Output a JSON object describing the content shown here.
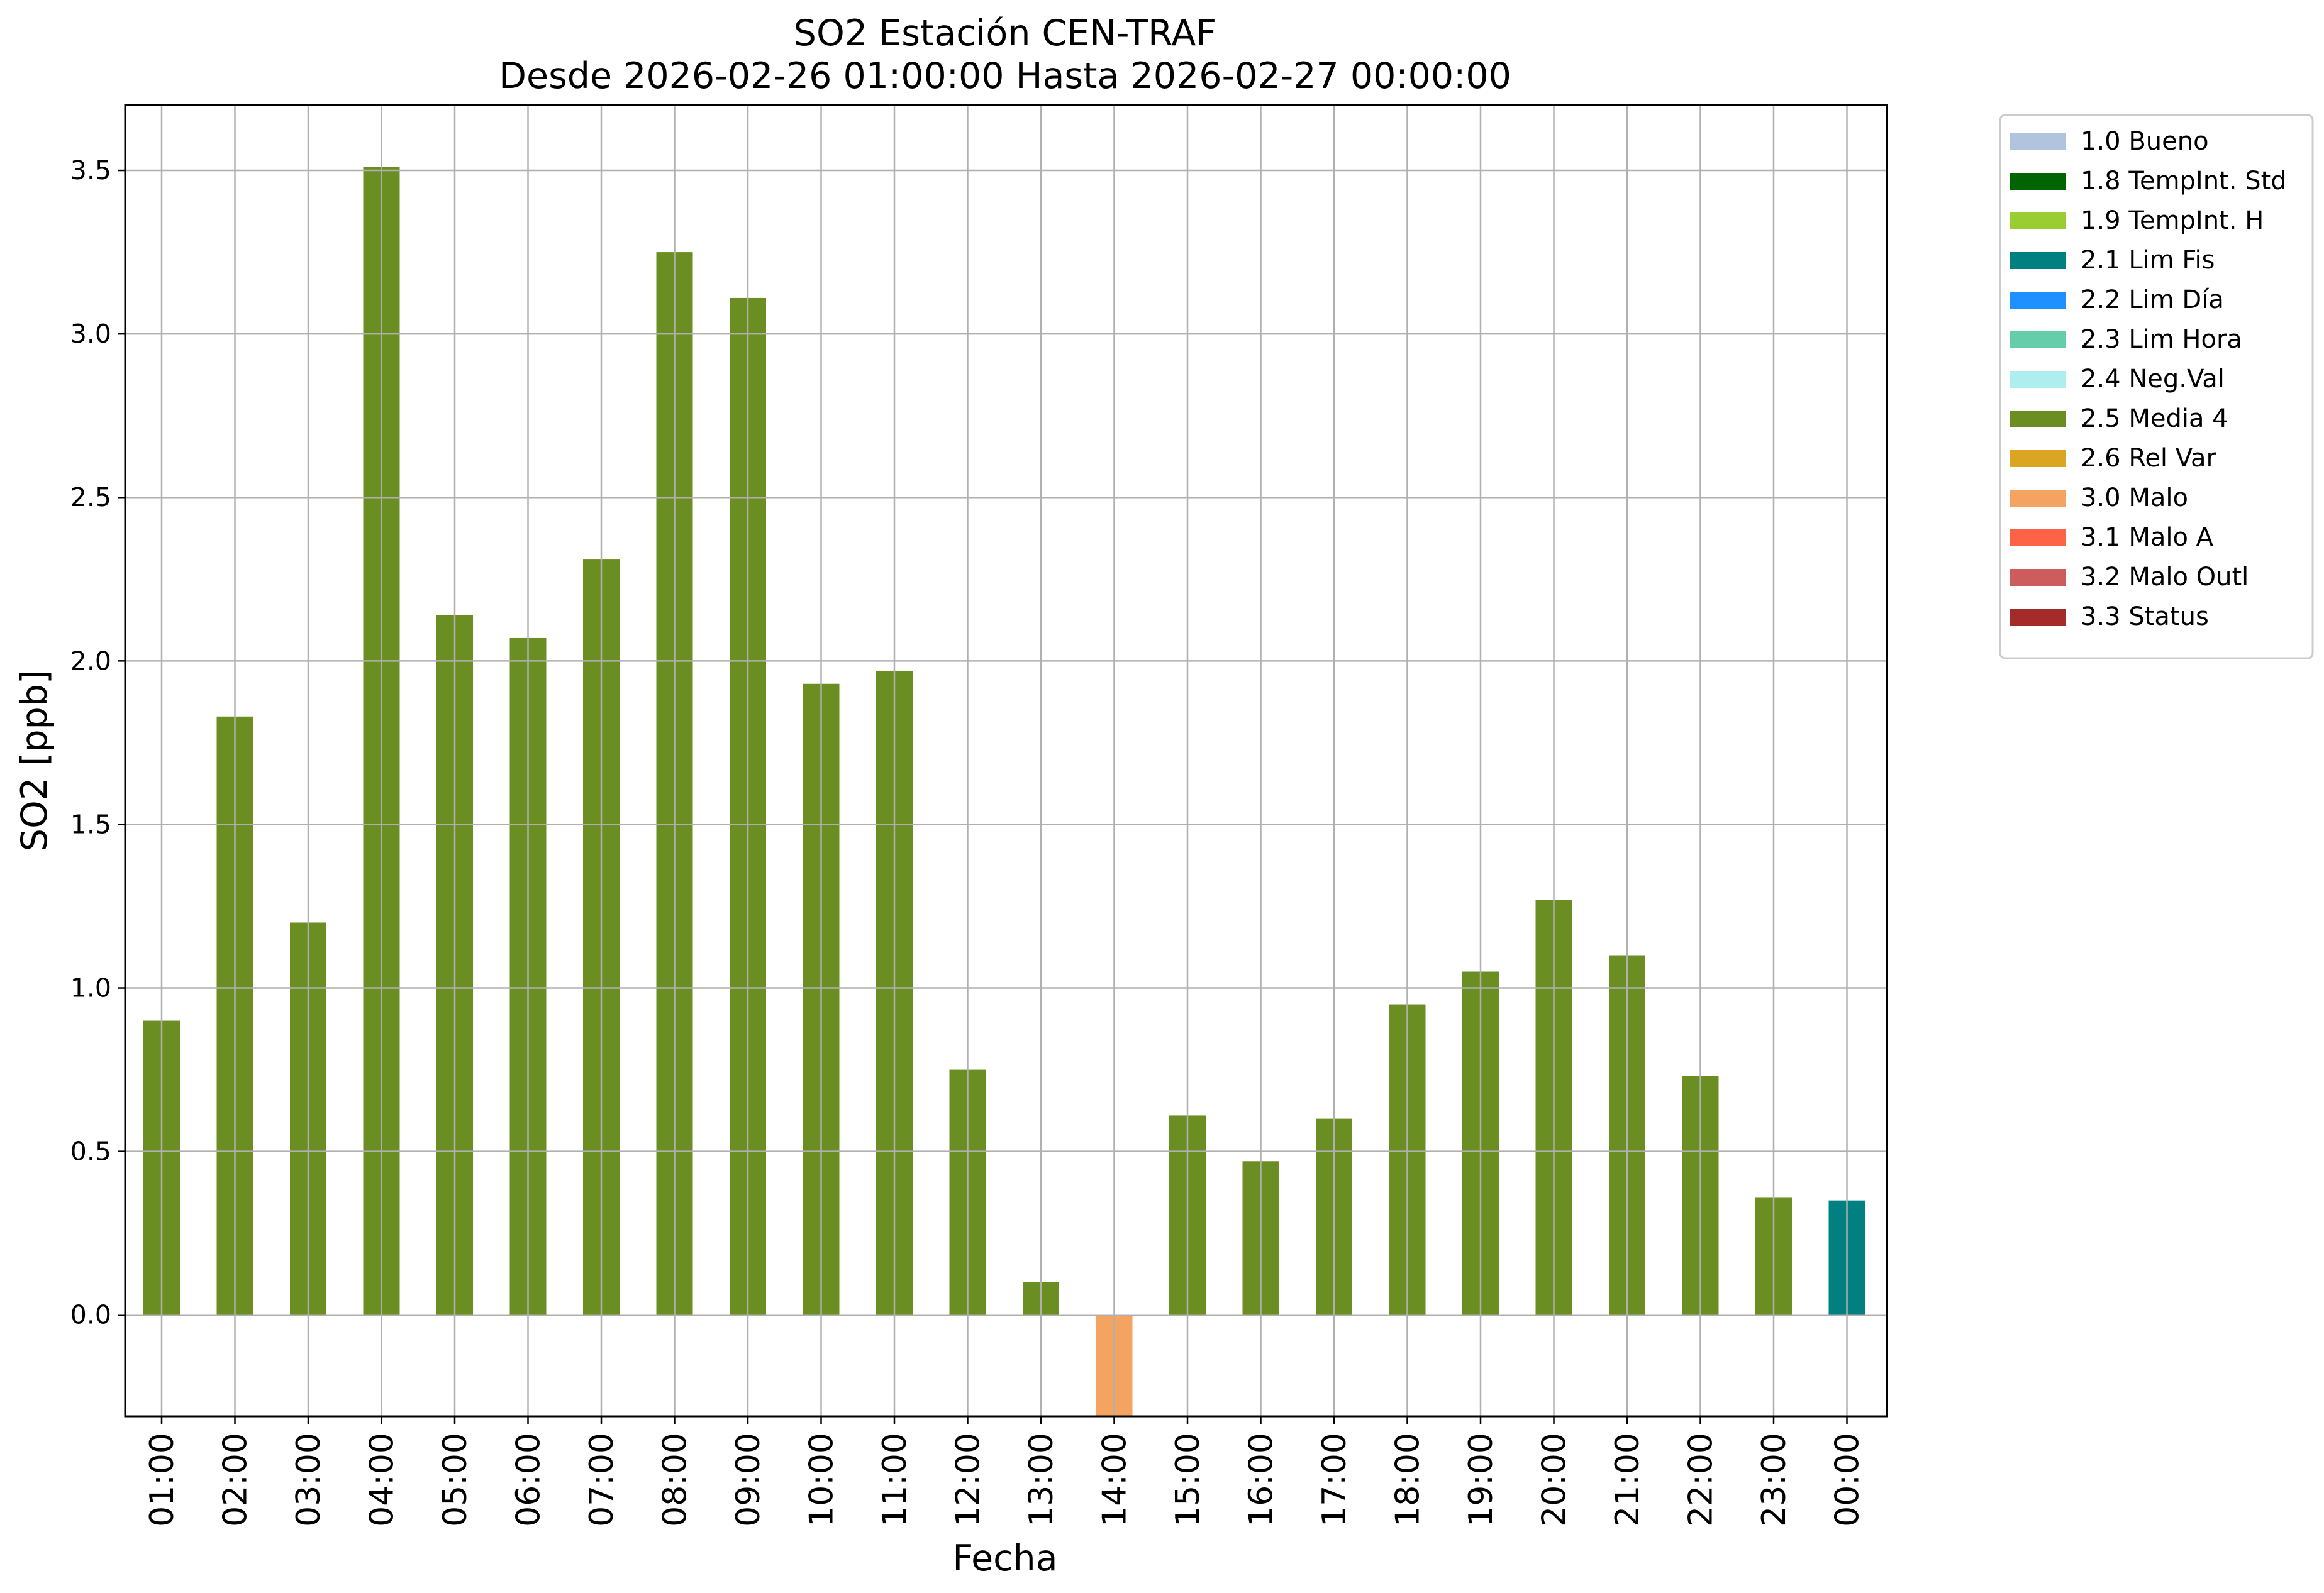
{
  "chart_data": {
    "type": "bar",
    "title": "SO2 Estación CEN-TRAF",
    "subtitle": "Desde 2026-02-26 01:00:00 Hasta 2026-02-27 00:00:00",
    "xlabel": "Fecha",
    "ylabel": "SO2 [ppb]",
    "ylim": [
      -0.31,
      3.7
    ],
    "yticks": [
      "0.0",
      "0.5",
      "1.0",
      "1.5",
      "2.0",
      "2.5",
      "3.0",
      "3.5"
    ],
    "grid": true,
    "legend_position": "outside top-right",
    "categories": [
      "01:00",
      "02:00",
      "03:00",
      "04:00",
      "05:00",
      "06:00",
      "07:00",
      "08:00",
      "09:00",
      "10:00",
      "11:00",
      "12:00",
      "13:00",
      "14:00",
      "15:00",
      "16:00",
      "17:00",
      "18:00",
      "19:00",
      "20:00",
      "21:00",
      "22:00",
      "23:00",
      "00:00"
    ],
    "values": [
      0.9,
      1.83,
      1.2,
      3.51,
      2.14,
      2.07,
      2.31,
      3.25,
      3.11,
      1.93,
      1.97,
      0.75,
      0.1,
      -0.32,
      0.61,
      0.47,
      0.6,
      0.95,
      1.05,
      1.27,
      1.1,
      0.73,
      0.36,
      0.35
    ],
    "flags": [
      "2.5 Media 4",
      "2.5 Media 4",
      "2.5 Media 4",
      "2.5 Media 4",
      "2.5 Media 4",
      "2.5 Media 4",
      "2.5 Media 4",
      "2.5 Media 4",
      "2.5 Media 4",
      "2.5 Media 4",
      "2.5 Media 4",
      "2.5 Media 4",
      "2.5 Media 4",
      "3.0 Malo",
      "2.5 Media 4",
      "2.5 Media 4",
      "2.5 Media 4",
      "2.5 Media 4",
      "2.5 Media 4",
      "2.5 Media 4",
      "2.5 Media 4",
      "2.5 Media 4",
      "2.5 Media 4",
      "2.1 Lim Fis"
    ],
    "legend": [
      {
        "label": "1.0 Bueno",
        "color": "#b0c4de"
      },
      {
        "label": "1.8 TempInt. Std",
        "color": "#006400"
      },
      {
        "label": "1.9 TempInt. H",
        "color": "#9acd32"
      },
      {
        "label": "2.1 Lim Fis",
        "color": "#008080"
      },
      {
        "label": "2.2 Lim Día",
        "color": "#1e90ff"
      },
      {
        "label": "2.3 Lim Hora",
        "color": "#66cdaa"
      },
      {
        "label": "2.4 Neg.Val",
        "color": "#afeeee"
      },
      {
        "label": "2.5 Media 4",
        "color": "#6b8e23"
      },
      {
        "label": "2.6 Rel Var",
        "color": "#daa520"
      },
      {
        "label": "3.0 Malo",
        "color": "#f4a460"
      },
      {
        "label": "3.1 Malo A",
        "color": "#ff6347"
      },
      {
        "label": "3.2 Malo Outl",
        "color": "#cd5c5c"
      },
      {
        "label": "3.3 Status",
        "color": "#a52a2a"
      }
    ]
  }
}
